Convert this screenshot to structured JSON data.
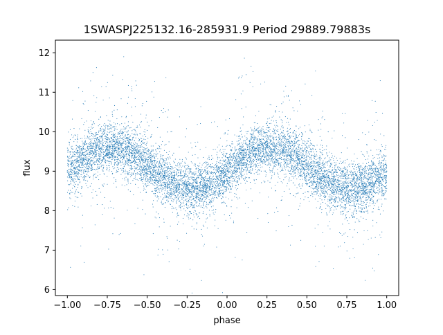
{
  "chart_data": {
    "type": "scatter",
    "title": "1SWASPJ225132.16-285931.9 Period 29889.79883s",
    "xlabel": "phase",
    "ylabel": "flux",
    "xlim": [
      -1.075,
      1.075
    ],
    "ylim": [
      5.85,
      12.32
    ],
    "xticks": [
      -1.0,
      -0.75,
      -0.5,
      -0.25,
      0.0,
      0.25,
      0.5,
      0.75,
      1.0
    ],
    "xtick_labels": [
      "−1.00",
      "−0.75",
      "−0.50",
      "−0.25",
      "0.00",
      "0.25",
      "0.50",
      "0.75",
      "1.00"
    ],
    "yticks": [
      6,
      7,
      8,
      9,
      10,
      11,
      12
    ],
    "ytick_labels": [
      "6",
      "7",
      "8",
      "9",
      "10",
      "11",
      "12"
    ],
    "grid": false,
    "legend": "none",
    "series": [
      {
        "color": "#1f77b4",
        "marker": "dot",
        "x": [
          -1.0,
          -0.95,
          -0.9,
          -0.85,
          -0.8,
          -0.75,
          -0.7,
          -0.65,
          -0.6,
          -0.55,
          -0.5,
          -0.45,
          -0.4,
          -0.35,
          -0.3,
          -0.25,
          -0.2,
          -0.15,
          -0.1,
          -0.05,
          0.0,
          0.05,
          0.1,
          0.15,
          0.2,
          0.25,
          0.3,
          0.35,
          0.4,
          0.45,
          0.5,
          0.55,
          0.6,
          0.65,
          0.7,
          0.75,
          0.8,
          0.85,
          0.9,
          0.95,
          1.0
        ],
        "y": [
          8.98,
          9.15,
          9.3,
          9.45,
          9.55,
          9.6,
          9.6,
          9.55,
          9.45,
          9.3,
          9.15,
          8.98,
          8.85,
          8.7,
          8.6,
          8.55,
          8.55,
          8.6,
          8.7,
          8.85,
          9.0,
          9.15,
          9.3,
          9.45,
          9.55,
          9.6,
          9.6,
          9.55,
          9.45,
          9.3,
          9.15,
          8.98,
          8.85,
          8.7,
          8.6,
          8.55,
          8.55,
          8.6,
          8.7,
          8.85,
          9.0
        ]
      }
    ]
  }
}
